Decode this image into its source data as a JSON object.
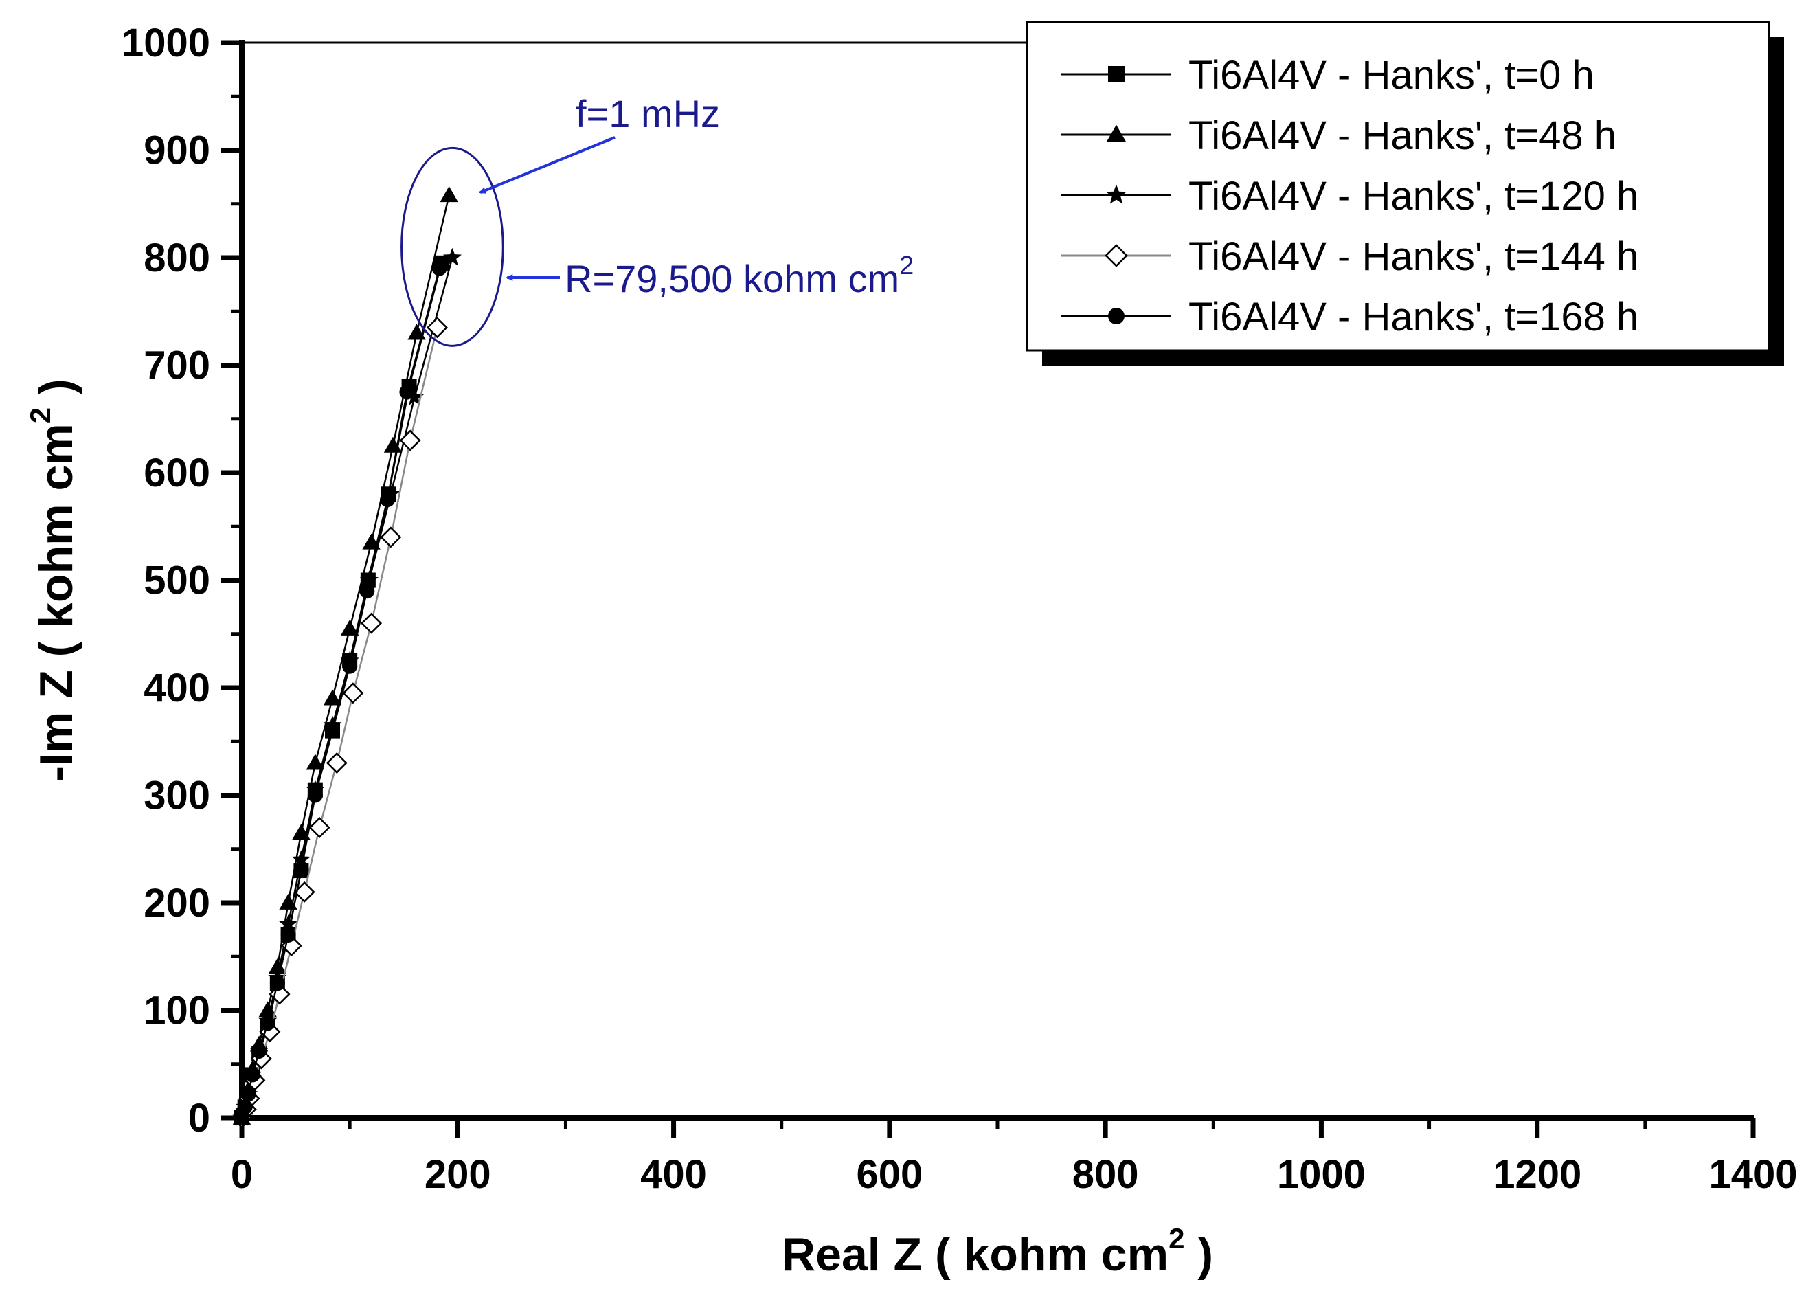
{
  "chart_data": {
    "type": "scatter",
    "xlabel": "Real Z ( kohm cm",
    "xlabel_sup": "2",
    "xlabel_close": " )",
    "ylabel": "-Im Z ( kohm cm",
    "ylabel_sup": "2",
    "ylabel_close": " )",
    "xlim": [
      0,
      1400
    ],
    "ylim": [
      0,
      1000
    ],
    "x_ticks": [
      0,
      200,
      400,
      600,
      800,
      1000,
      1200,
      1400
    ],
    "y_ticks": [
      0,
      100,
      200,
      300,
      400,
      500,
      600,
      700,
      800,
      900,
      1000
    ],
    "legend_position": "top-right",
    "series": [
      {
        "name": "Ti6Al4V - Hanks', t=0 h",
        "marker": "square",
        "x": [
          0,
          3,
          6,
          10,
          16,
          24,
          33,
          43,
          55,
          68,
          84,
          100,
          117,
          136,
          155,
          185
        ],
        "y": [
          0,
          10,
          22,
          40,
          60,
          85,
          125,
          170,
          230,
          305,
          360,
          425,
          500,
          580,
          680,
          795
        ]
      },
      {
        "name": "Ti6Al4V - Hanks', t=48 h",
        "marker": "triangle",
        "x": [
          0,
          3,
          6,
          10,
          16,
          24,
          33,
          43,
          55,
          68,
          84,
          100,
          120,
          140,
          162,
          192
        ],
        "y": [
          0,
          12,
          26,
          45,
          68,
          100,
          140,
          200,
          265,
          330,
          390,
          455,
          535,
          625,
          730,
          858
        ]
      },
      {
        "name": "Ti6Al4V - Hanks', t=120 h",
        "marker": "star",
        "x": [
          0,
          3,
          6,
          10,
          16,
          24,
          33,
          43,
          55,
          68,
          84,
          100,
          118,
          138,
          160,
          195
        ],
        "y": [
          0,
          10,
          22,
          40,
          62,
          90,
          130,
          180,
          240,
          305,
          365,
          425,
          500,
          580,
          670,
          800
        ]
      },
      {
        "name": "Ti6Al4V - Hanks', t=144 h",
        "marker": "open-diamond",
        "x": [
          0,
          4,
          7,
          12,
          18,
          26,
          35,
          46,
          58,
          72,
          88,
          103,
          120,
          138,
          156,
          181
        ],
        "y": [
          0,
          8,
          18,
          35,
          55,
          80,
          115,
          160,
          210,
          270,
          330,
          395,
          460,
          540,
          630,
          735
        ]
      },
      {
        "name": "Ti6Al4V - Hanks', t=168 h",
        "marker": "circle",
        "x": [
          0,
          3,
          6,
          10,
          16,
          24,
          33,
          43,
          55,
          68,
          84,
          100,
          116,
          135,
          153,
          183
        ],
        "y": [
          0,
          10,
          22,
          40,
          62,
          88,
          125,
          170,
          230,
          300,
          360,
          420,
          490,
          575,
          675,
          790
        ]
      }
    ],
    "annotations": [
      {
        "text": "f=1 mHz"
      },
      {
        "text": "R=79,500 kohm cm",
        "sup": "2"
      }
    ],
    "highlight_ellipse": {
      "cx": 195,
      "cy": 810,
      "rx": 47,
      "ry": 92
    }
  }
}
